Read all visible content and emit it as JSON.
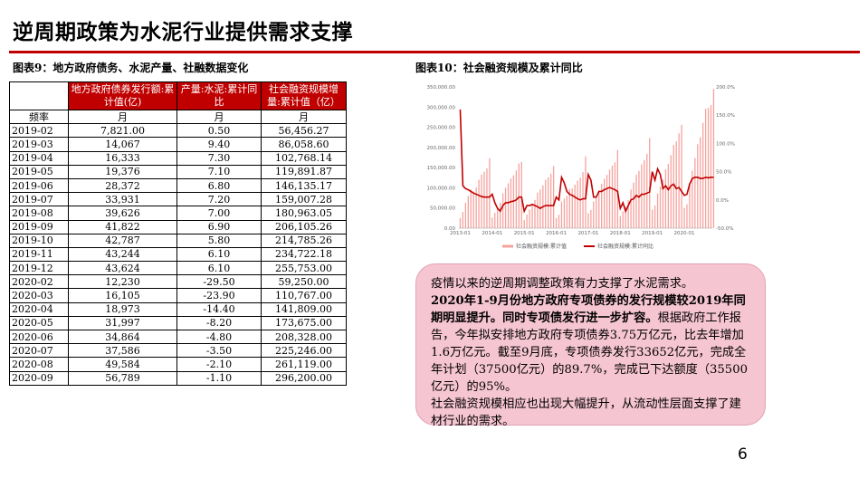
{
  "page": {
    "title": "逆周期政策为水泥行业提供需求支撑",
    "page_number": "6"
  },
  "table_caption": "图表9：地方政府债务、水泥产量、社融数据变化",
  "chart_caption": "图表10：社会融资规模及累计同比",
  "table": {
    "headers": [
      "",
      "地方政府债券发行额:累计值(亿)",
      "产量:水泥:累计同比",
      "社会融资规模增量:累计值（亿）"
    ],
    "freq_label": "频率",
    "freq_values": [
      "月",
      "月",
      "月"
    ],
    "rows": [
      [
        "2019-02",
        "7,821.00",
        "0.50",
        "56,456.27"
      ],
      [
        "2019-03",
        "14,067",
        "9.40",
        "86,058.60"
      ],
      [
        "2019-04",
        "16,333",
        "7.30",
        "102,768.14"
      ],
      [
        "2019-05",
        "19,376",
        "7.10",
        "119,891.87"
      ],
      [
        "2019-06",
        "28,372",
        "6.80",
        "146,135.17"
      ],
      [
        "2019-07",
        "33,931",
        "7.20",
        "159,007.28"
      ],
      [
        "2019-08",
        "39,626",
        "7.00",
        "180,963.05"
      ],
      [
        "2019-09",
        "41,822",
        "6.90",
        "206,105.26"
      ],
      [
        "2019-10",
        "42,787",
        "5.80",
        "214,785.26"
      ],
      [
        "2019-11",
        "43,244",
        "6.10",
        "234,722.18"
      ],
      [
        "2019-12",
        "43,624",
        "6.10",
        "255,753.00"
      ],
      [
        "2020-02",
        "12,230",
        "-29.50",
        "59,250.00"
      ],
      [
        "2020-03",
        "16,105",
        "-23.90",
        "110,767.00"
      ],
      [
        "2020-04",
        "18,973",
        "-14.40",
        "141,809.00"
      ],
      [
        "2020-05",
        "31,997",
        "-8.20",
        "173,675.00"
      ],
      [
        "2020-06",
        "34,864",
        "-4.80",
        "208,328.00"
      ],
      [
        "2020-07",
        "37,586",
        "-3.50",
        "225,246.00"
      ],
      [
        "2020-08",
        "49,584",
        "-2.10",
        "261,119.00"
      ],
      [
        "2020-09",
        "56,789",
        "-1.10",
        "296,200.00"
      ]
    ]
  },
  "note": {
    "p1": "疫情以来的逆周期调整政策有力支撑了水泥需求。",
    "p2_bold": "2020年1-9月份地方政府专项债券的发行规模较2019年同期明显提升。同时专项债发行进一步扩容。",
    "p2_rest": "根据政府工作报告，今年拟安排地方政府专项债券3.75万亿元，比去年增加1.6万亿元。截至9月底，专项债券发行33652亿元，完成全年计划（37500亿元）的89.7%，完成已下达额度（35500亿元）的95%。",
    "p3": "社会融资规模相应也出现大幅提升，从流动性层面支撑了建材行业的需求。"
  },
  "chart_data": {
    "type": "bar",
    "title": "",
    "x_ticks": [
      "2013-01",
      "2014-01",
      "2015-01",
      "2016-01",
      "2017-01",
      "2018-01",
      "2019-01",
      "2020-01"
    ],
    "y_left_ticks": [
      "0.00",
      "50,000.00",
      "100,000.00",
      "150,000.00",
      "200,000.00",
      "250,000.00",
      "300,000.00",
      "350,000.00"
    ],
    "y_left_range": [
      0,
      350000
    ],
    "y_right_ticks": [
      "-50.0%",
      "0.0%",
      "50.0%",
      "100.0%",
      "150.0%",
      "200.0%"
    ],
    "y_right_range": [
      -50,
      200
    ],
    "x_range": [
      0,
      95
    ],
    "series": [
      {
        "name": "社会融资规模:累计值",
        "kind": "bar",
        "color": "#f4a39e",
        "values": [
          25000,
          40000,
          63000,
          80000,
          96000,
          91000,
          101000,
          120000,
          133000,
          140000,
          148000,
          173000,
          26000,
          38000,
          52000,
          63000,
          86000,
          100000,
          111000,
          123000,
          131000,
          143000,
          160000,
          164000,
          20000,
          34000,
          46000,
          58000,
          70000,
          88000,
          96000,
          106000,
          120000,
          126000,
          135000,
          154000,
          25000,
          33000,
          66000,
          73000,
          80000,
          97000,
          98000,
          108000,
          118000,
          125000,
          139000,
          178000,
          37000,
          45000,
          66000,
          77000,
          93000,
          110000,
          122000,
          132000,
          145000,
          155000,
          163000,
          194000,
          30000,
          42000,
          53000,
          69000,
          96000,
          113000,
          132000,
          142000,
          158000,
          169000,
          184000,
          223000,
          46000,
          56000,
          86000,
          103000,
          120000,
          146000,
          159000,
          181000,
          206000,
          215000,
          235000,
          256000,
          50000,
          59000,
          111000,
          142000,
          174000,
          208000,
          225000,
          261000,
          296000,
          298000,
          305000,
          345000
        ],
        "note": "monthly cumulative values, estimated from the chart"
      },
      {
        "name": "社会融资规模:累计同比",
        "kind": "line",
        "color": "#c00000",
        "values": [
          160,
          25,
          20,
          18,
          15,
          12,
          10,
          8,
          6,
          5,
          5,
          5,
          10,
          -5,
          -15,
          -20,
          -10,
          -5,
          -5,
          -3,
          -2,
          0,
          5,
          5,
          -20,
          -10,
          -10,
          -8,
          -10,
          -12,
          -15,
          -12,
          -10,
          -10,
          -10,
          -10,
          5,
          0,
          40,
          30,
          15,
          10,
          8,
          5,
          2,
          0,
          2,
          2,
          45,
          35,
          5,
          5,
          15,
          15,
          18,
          20,
          22,
          20,
          18,
          15,
          -15,
          -5,
          -20,
          -10,
          0,
          2,
          8,
          5,
          10,
          10,
          12,
          14,
          50,
          35,
          55,
          45,
          20,
          25,
          18,
          25,
          28,
          20,
          22,
          15,
          8,
          10,
          28,
          38,
          40,
          40,
          38,
          38,
          40,
          39,
          40,
          40
        ]
      }
    ],
    "legend": [
      "社会融资规模:累计值",
      "社会融资规模:累计同比"
    ],
    "legend_position": "bottom"
  }
}
